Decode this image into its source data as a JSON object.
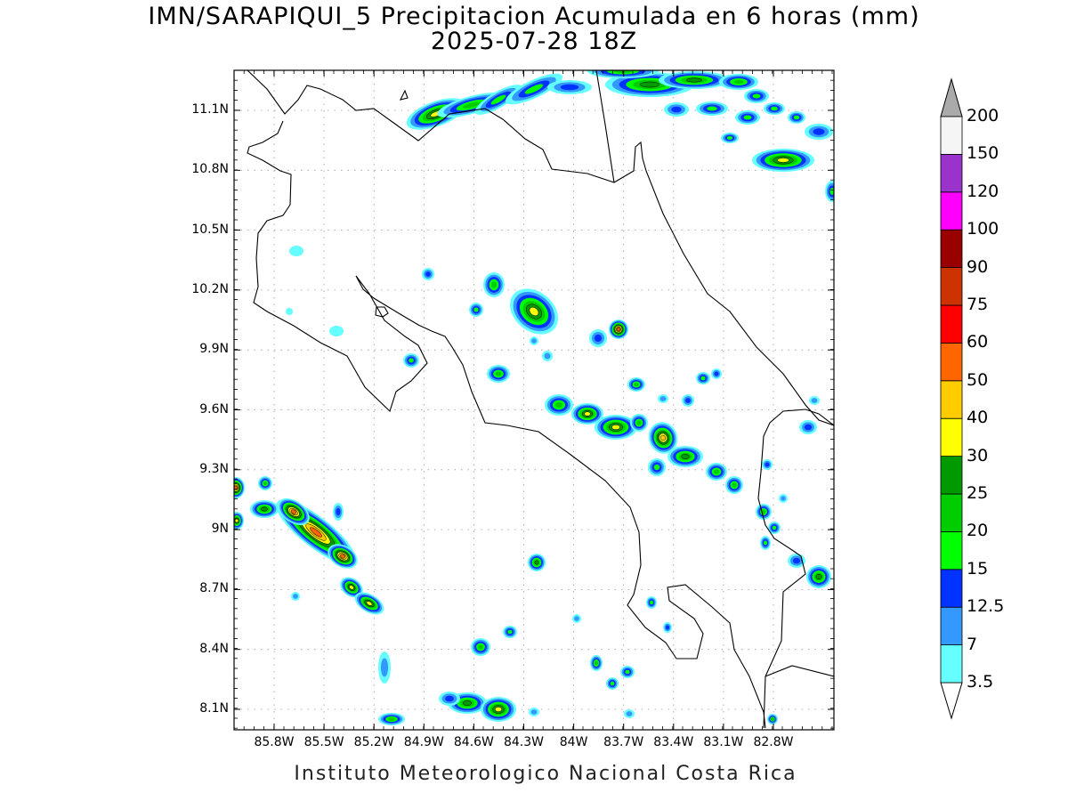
{
  "title_line1": "IMN/SARAPIQUI_5 Precipitacion Acumulada en 6 horas (mm)",
  "title_line2": "2025-07-28 18Z",
  "footer": "Instituto Meteorologico Nacional Costa Rica",
  "lat_labels": [
    "11.1N",
    "10.8N",
    "10.5N",
    "10.2N",
    "9.9N",
    "9.6N",
    "9.3N",
    "9N",
    "8.7N",
    "8.4N",
    "8.1N"
  ],
  "lon_labels": [
    "85.8W",
    "85.5W",
    "85.2W",
    "84.9W",
    "84.6W",
    "84.3W",
    "84W",
    "83.7W",
    "83.4W",
    "83.1W",
    "82.8W"
  ],
  "colorbar": {
    "levels": [
      "3.5",
      "7",
      "12.5",
      "15",
      "20",
      "25",
      "30",
      "40",
      "50",
      "60",
      "75",
      "90",
      "100",
      "120",
      "150",
      "200"
    ],
    "colors": [
      "#66ffff",
      "#3399ff",
      "#0033ff",
      "#00ff00",
      "#00cc00",
      "#009900",
      "#ffff00",
      "#ffcc00",
      "#ff6600",
      "#ff0000",
      "#cc3300",
      "#990000",
      "#ff00ff",
      "#9933cc",
      "#f5f5f5",
      "#aaaaaa"
    ]
  }
}
